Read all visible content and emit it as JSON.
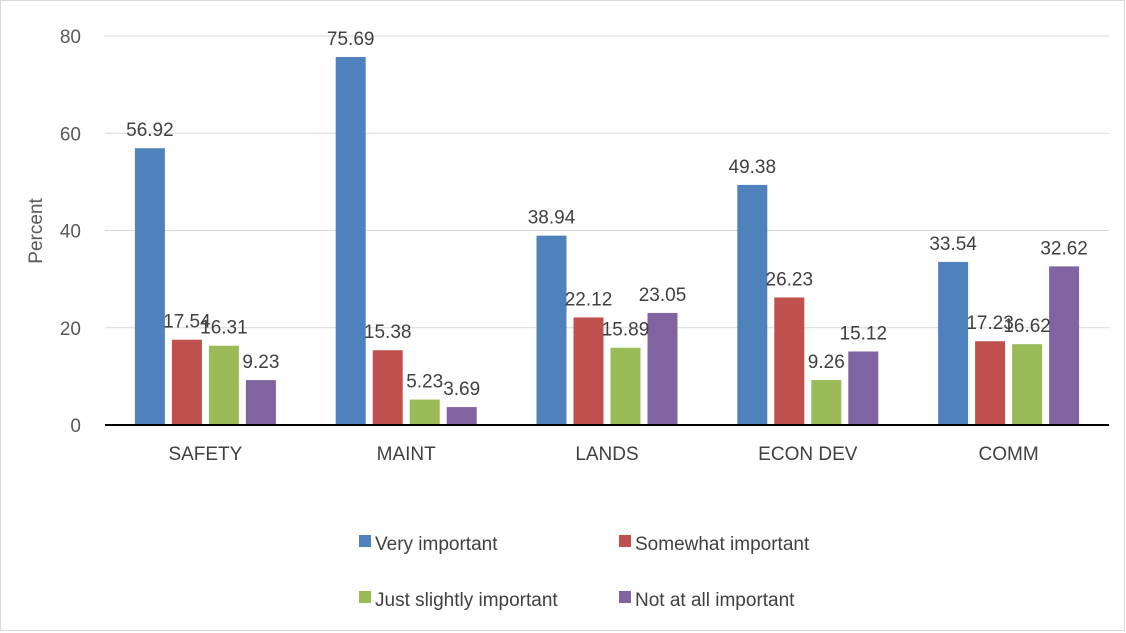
{
  "chart_data": {
    "type": "bar",
    "title": "",
    "xlabel": "",
    "ylabel": "Percent",
    "ylim": [
      0,
      80
    ],
    "yticks": [
      0,
      20,
      40,
      60,
      80
    ],
    "grid": "horizontal",
    "legend_position": "bottom",
    "categories": [
      "SAFETY",
      "MAINT",
      "LANDS",
      "ECON DEV",
      "COMM"
    ],
    "series": [
      {
        "name": "Very important",
        "color": "#4f81bd",
        "values": [
          56.92,
          75.69,
          38.94,
          49.38,
          33.54
        ]
      },
      {
        "name": "Somewhat important",
        "color": "#c0504d",
        "values": [
          17.54,
          15.38,
          22.12,
          26.23,
          17.23
        ]
      },
      {
        "name": "Just slightly important",
        "color": "#9bbb59",
        "values": [
          16.31,
          5.23,
          15.89,
          9.26,
          16.62
        ]
      },
      {
        "name": "Not at all important",
        "color": "#8064a2",
        "values": [
          9.23,
          3.69,
          23.05,
          15.12,
          32.62
        ]
      }
    ]
  }
}
